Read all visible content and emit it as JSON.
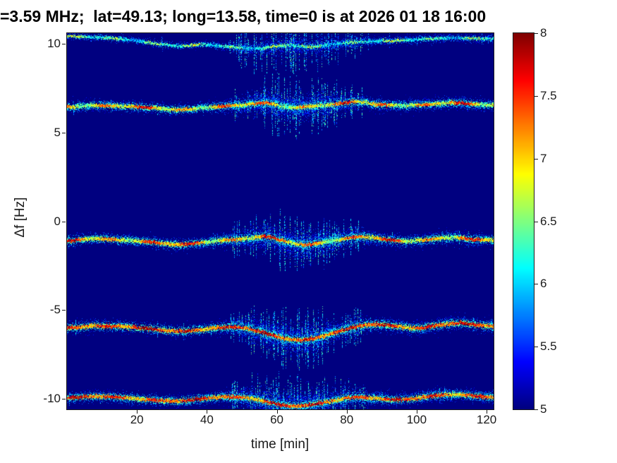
{
  "chart_data": {
    "type": "heatmap",
    "title": "=3.59 MHz;  lat=49.13; long=13.58, time=0 is at 2026 01 18 16:00",
    "xlabel": "time [min]",
    "ylabel": "Δf [Hz]",
    "xlim": [
      0,
      122
    ],
    "ylim": [
      -10.6,
      10.6
    ],
    "xticks": [
      20,
      40,
      60,
      80,
      100,
      120
    ],
    "yticks": [
      10,
      5,
      0,
      -5,
      -10
    ],
    "grid": false,
    "background_value": 5.0,
    "colorbar": {
      "min": 5,
      "max": 8,
      "ticks": [
        8,
        7.5,
        7,
        6.5,
        6,
        5.5,
        5
      ],
      "colormap": "jet",
      "position": "right"
    },
    "broadening": [
      [
        0,
        1.0
      ],
      [
        40,
        1.0
      ],
      [
        48,
        1.4
      ],
      [
        56,
        2.1
      ],
      [
        64,
        2.4
      ],
      [
        72,
        2.2
      ],
      [
        80,
        1.5
      ],
      [
        90,
        1.2
      ],
      [
        105,
        1.15
      ],
      [
        122,
        1.1
      ]
    ],
    "traces": [
      {
        "name": "doppler-trace-top-clipped",
        "core_level": 6.3,
        "level_var": 0.3,
        "core_sigma": 1.1,
        "halo_sigma": 2.6,
        "halo_gain": 0.45,
        "density": 0.55,
        "phase": 0.5,
        "points": [
          [
            0,
            10.45
          ],
          [
            8,
            10.4
          ],
          [
            16,
            10.28
          ],
          [
            24,
            10.08
          ],
          [
            32,
            9.9
          ],
          [
            40,
            9.98
          ],
          [
            48,
            9.82
          ],
          [
            55,
            9.76
          ],
          [
            62,
            9.92
          ],
          [
            70,
            9.86
          ],
          [
            78,
            10.05
          ],
          [
            86,
            10.15
          ],
          [
            94,
            10.2
          ],
          [
            102,
            10.28
          ],
          [
            110,
            10.34
          ],
          [
            122,
            10.3
          ]
        ]
      },
      {
        "name": "doppler-trace-plus6",
        "core_level": 7.0,
        "level_var": 0.45,
        "core_sigma": 1.2,
        "halo_sigma": 3.6,
        "halo_gain": 0.8,
        "density": 1.0,
        "phase": 2.0,
        "points": [
          [
            0,
            6.45
          ],
          [
            8,
            6.55
          ],
          [
            16,
            6.5
          ],
          [
            24,
            6.42
          ],
          [
            32,
            6.3
          ],
          [
            38,
            6.4
          ],
          [
            45,
            6.5
          ],
          [
            52,
            6.6
          ],
          [
            57,
            6.68
          ],
          [
            63,
            6.45
          ],
          [
            70,
            6.5
          ],
          [
            77,
            6.62
          ],
          [
            83,
            6.75
          ],
          [
            89,
            6.6
          ],
          [
            96,
            6.55
          ],
          [
            103,
            6.6
          ],
          [
            110,
            6.7
          ],
          [
            116,
            6.62
          ],
          [
            122,
            6.55
          ]
        ]
      },
      {
        "name": "doppler-trace-minus1",
        "core_level": 7.1,
        "level_var": 0.45,
        "core_sigma": 1.2,
        "halo_sigma": 3.8,
        "halo_gain": 0.85,
        "density": 1.0,
        "phase": 0.9,
        "points": [
          [
            0,
            -1.1
          ],
          [
            8,
            -0.95
          ],
          [
            16,
            -1.05
          ],
          [
            24,
            -1.15
          ],
          [
            31,
            -1.3
          ],
          [
            38,
            -1.2
          ],
          [
            45,
            -1.05
          ],
          [
            52,
            -0.95
          ],
          [
            57,
            -0.85
          ],
          [
            63,
            -1.15
          ],
          [
            68,
            -1.3
          ],
          [
            74,
            -1.15
          ],
          [
            80,
            -0.95
          ],
          [
            85,
            -0.85
          ],
          [
            91,
            -1.0
          ],
          [
            97,
            -1.1
          ],
          [
            104,
            -1.0
          ],
          [
            110,
            -0.9
          ],
          [
            116,
            -1.0
          ],
          [
            122,
            -1.05
          ]
        ]
      },
      {
        "name": "doppler-trace-minus6",
        "core_level": 7.45,
        "level_var": 0.3,
        "core_sigma": 1.3,
        "halo_sigma": 4.0,
        "halo_gain": 0.9,
        "density": 1.05,
        "phase": 1.6,
        "points": [
          [
            0,
            -6.0
          ],
          [
            8,
            -5.88
          ],
          [
            16,
            -5.92
          ],
          [
            24,
            -6.05
          ],
          [
            31,
            -6.18
          ],
          [
            38,
            -6.1
          ],
          [
            45,
            -5.95
          ],
          [
            52,
            -6.05
          ],
          [
            58,
            -6.35
          ],
          [
            64,
            -6.65
          ],
          [
            70,
            -6.6
          ],
          [
            76,
            -6.3
          ],
          [
            82,
            -5.95
          ],
          [
            88,
            -5.8
          ],
          [
            94,
            -5.9
          ],
          [
            100,
            -6.0
          ],
          [
            106,
            -5.85
          ],
          [
            112,
            -5.72
          ],
          [
            118,
            -5.85
          ],
          [
            122,
            -5.9
          ]
        ]
      },
      {
        "name": "doppler-trace-minus10",
        "core_level": 7.4,
        "level_var": 0.3,
        "core_sigma": 1.3,
        "halo_sigma": 3.8,
        "halo_gain": 0.85,
        "density": 1.0,
        "phase": 0.2,
        "points": [
          [
            0,
            -9.95
          ],
          [
            8,
            -9.85
          ],
          [
            16,
            -9.92
          ],
          [
            24,
            -10.05
          ],
          [
            31,
            -10.12
          ],
          [
            38,
            -10.0
          ],
          [
            45,
            -9.88
          ],
          [
            52,
            -9.95
          ],
          [
            58,
            -10.2
          ],
          [
            64,
            -10.4
          ],
          [
            70,
            -10.3
          ],
          [
            76,
            -10.1
          ],
          [
            82,
            -9.9
          ],
          [
            88,
            -9.95
          ],
          [
            94,
            -10.05
          ],
          [
            100,
            -9.95
          ],
          [
            106,
            -9.8
          ],
          [
            112,
            -9.75
          ],
          [
            118,
            -9.85
          ],
          [
            122,
            -9.9
          ]
        ]
      }
    ]
  }
}
